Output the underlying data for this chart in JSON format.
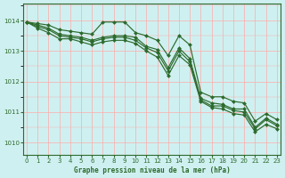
{
  "title": "Graphe pression niveau de la mer (hPa)",
  "background_color": "#cff0f0",
  "grid_color": "#ffaaaa",
  "line_color": "#2d6a2d",
  "xlim": [
    -0.3,
    23.3
  ],
  "ylim": [
    1009.6,
    1014.55
  ],
  "xticks": [
    0,
    1,
    2,
    3,
    4,
    5,
    6,
    7,
    8,
    9,
    10,
    11,
    12,
    13,
    14,
    15,
    16,
    17,
    18,
    19,
    20,
    21,
    22,
    23
  ],
  "yticks": [
    1010,
    1011,
    1012,
    1013,
    1014
  ],
  "series": [
    {
      "x": [
        0,
        1,
        2,
        3,
        4,
        5,
        6,
        7,
        8,
        9,
        10,
        11,
        12,
        13,
        14,
        15,
        16,
        17,
        18,
        19,
        20,
        21,
        22,
        23
      ],
      "y": [
        1013.95,
        1013.9,
        1013.85,
        1013.7,
        1013.65,
        1013.6,
        1013.55,
        1013.95,
        1013.95,
        1013.95,
        1013.6,
        1013.5,
        1013.35,
        1012.85,
        1013.5,
        1013.2,
        1011.65,
        1011.5,
        1011.5,
        1011.35,
        1011.3,
        1010.7,
        1010.95,
        1010.75
      ]
    },
    {
      "x": [
        0,
        1,
        2,
        3,
        4,
        5,
        6,
        7,
        8,
        9,
        10,
        11,
        12,
        13,
        14,
        15,
        16,
        17,
        18,
        19,
        20,
        21,
        22,
        23
      ],
      "y": [
        1013.95,
        1013.85,
        1013.75,
        1013.55,
        1013.5,
        1013.45,
        1013.35,
        1013.45,
        1013.5,
        1013.5,
        1013.45,
        1013.15,
        1013.05,
        1012.45,
        1013.1,
        1012.75,
        1011.45,
        1011.3,
        1011.25,
        1011.1,
        1011.1,
        1010.5,
        1010.8,
        1010.6
      ]
    },
    {
      "x": [
        0,
        1,
        2,
        3,
        4,
        5,
        6,
        7,
        8,
        9,
        10,
        11,
        12,
        13,
        14,
        15,
        16,
        17,
        18,
        19,
        20,
        21,
        22,
        23
      ],
      "y": [
        1013.95,
        1013.8,
        1013.7,
        1013.5,
        1013.45,
        1013.4,
        1013.3,
        1013.4,
        1013.45,
        1013.45,
        1013.35,
        1013.1,
        1012.95,
        1012.35,
        1013.0,
        1012.65,
        1011.4,
        1011.2,
        1011.2,
        1011.05,
        1011.0,
        1010.45,
        1010.75,
        1010.55
      ]
    },
    {
      "x": [
        0,
        1,
        2,
        3,
        4,
        5,
        6,
        7,
        8,
        9,
        10,
        11,
        12,
        13,
        14,
        15,
        16,
        17,
        18,
        19,
        20,
        21,
        22,
        23
      ],
      "y": [
        1013.95,
        1013.75,
        1013.6,
        1013.4,
        1013.4,
        1013.3,
        1013.2,
        1013.3,
        1013.35,
        1013.35,
        1013.25,
        1013.0,
        1012.8,
        1012.2,
        1012.85,
        1012.55,
        1011.35,
        1011.15,
        1011.1,
        1010.95,
        1010.9,
        1010.35,
        1010.6,
        1010.45
      ]
    }
  ],
  "marker": "D",
  "marker_size": 2.0,
  "linewidth": 0.85
}
